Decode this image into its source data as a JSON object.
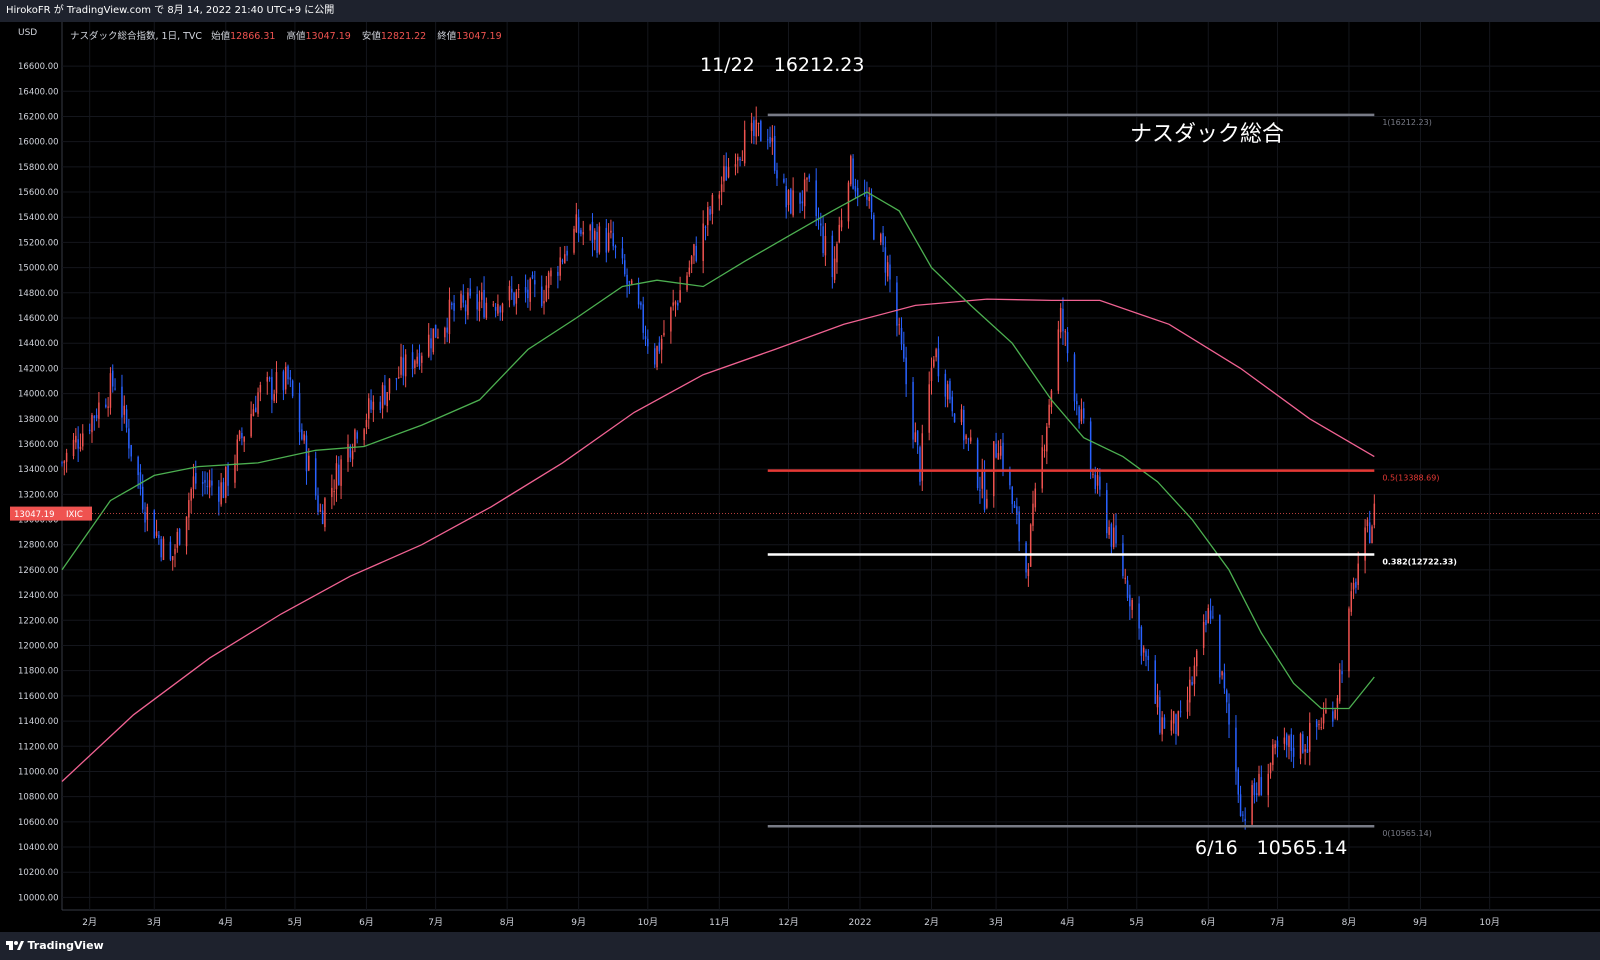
{
  "header": {
    "publish_text": "HirokoFR が TradingView.com で 8月 14, 2022 21:40 UTC+9 に公開"
  },
  "legend": {
    "symbol_text": "ナスダック総合指数, 1日, TVC",
    "open_label": "始値",
    "open_value": "12866.31",
    "high_label": "高値",
    "high_value": "13047.19",
    "low_label": "安値",
    "low_value": "12821.22",
    "close_label": "終値",
    "close_value": "13047.19"
  },
  "footer": {
    "brand": "TradingView"
  },
  "colors": {
    "up": "#ef5350",
    "down": "#2962ff",
    "ma_short": "#4caf50",
    "ma_long": "#f06292",
    "fib_mid": "#e53935",
    "fib_382": "#ffffff",
    "fib_ends": "#787b86"
  },
  "chart_data": {
    "type": "candlestick",
    "currency_label": "USD",
    "ylim": [
      9900,
      16950
    ],
    "y_ticks": [
      "16600.00",
      "16400.00",
      "16200.00",
      "16000.00",
      "15800.00",
      "15600.00",
      "15400.00",
      "15200.00",
      "15000.00",
      "14800.00",
      "14600.00",
      "14400.00",
      "14200.00",
      "14000.00",
      "13800.00",
      "13600.00",
      "13400.00",
      "13200.00",
      "13000.00",
      "12800.00",
      "12600.00",
      "12400.00",
      "12200.00",
      "12000.00",
      "11800.00",
      "11600.00",
      "11400.00",
      "11200.00",
      "11000.00",
      "10800.00",
      "10600.00",
      "10400.00",
      "10200.00",
      "10000.00"
    ],
    "x_ticks": [
      "2月",
      "3月",
      "4月",
      "5月",
      "6月",
      "7月",
      "8月",
      "9月",
      "10月",
      "11月",
      "12月",
      "2022",
      "2月",
      "3月",
      "4月",
      "5月",
      "6月",
      "7月",
      "8月",
      "9月",
      "10月"
    ],
    "x_range": [
      "2021-01-20",
      "2022-10-25"
    ],
    "last_price": {
      "value": "13047.19",
      "symbol": "IXIC"
    },
    "annotations": {
      "high_note": "11/22　16212.23",
      "low_note": "6/16　10565.14",
      "name_note": "ナスダック総合"
    },
    "fib_levels": [
      {
        "ratio": 1,
        "value": 16212.23,
        "label": "1(16212.23)"
      },
      {
        "ratio": 0.5,
        "value": 13388.69,
        "label": "0.5(13388.69)"
      },
      {
        "ratio": 0.382,
        "value": 12722.33,
        "label": "0.382(12722.33)"
      },
      {
        "ratio": 0,
        "value": 10565.14,
        "label": "0(10565.14)"
      }
    ],
    "fib_range": [
      "2021-11-22",
      "2022-08-12"
    ],
    "price_path": [
      [
        "2021-01-20",
        13450
      ],
      [
        "2021-02-12",
        14100
      ],
      [
        "2021-02-25",
        13100
      ],
      [
        "2021-03-08",
        12650
      ],
      [
        "2021-03-18",
        13300
      ],
      [
        "2021-03-31",
        13250
      ],
      [
        "2021-04-15",
        14000
      ],
      [
        "2021-04-28",
        14100
      ],
      [
        "2021-05-12",
        13050
      ],
      [
        "2021-05-28",
        13750
      ],
      [
        "2021-06-15",
        14150
      ],
      [
        "2021-07-08",
        14650
      ],
      [
        "2021-07-27",
        14750
      ],
      [
        "2021-08-16",
        14800
      ],
      [
        "2021-08-31",
        15300
      ],
      [
        "2021-09-15",
        15200
      ],
      [
        "2021-10-04",
        14300
      ],
      [
        "2021-10-21",
        15100
      ],
      [
        "2021-11-08",
        15950
      ],
      [
        "2021-11-22",
        16100
      ],
      [
        "2021-11-30",
        15500
      ],
      [
        "2021-12-10",
        15600
      ],
      [
        "2021-12-20",
        14950
      ],
      [
        "2021-12-27",
        15800
      ],
      [
        "2022-01-04",
        15500
      ],
      [
        "2022-01-13",
        15000
      ],
      [
        "2022-01-27",
        13400
      ],
      [
        "2022-02-02",
        14350
      ],
      [
        "2022-02-14",
        13750
      ],
      [
        "2022-02-24",
        13200
      ],
      [
        "2022-03-02",
        13650
      ],
      [
        "2022-03-14",
        12600
      ],
      [
        "2022-03-29",
        14600
      ],
      [
        "2022-04-11",
        13400
      ],
      [
        "2022-04-29",
        12350
      ],
      [
        "2022-05-11",
        11400
      ],
      [
        "2022-05-20",
        11350
      ],
      [
        "2022-06-02",
        12300
      ],
      [
        "2022-06-16",
        10650
      ],
      [
        "2022-07-01",
        11150
      ],
      [
        "2022-07-14",
        11250
      ],
      [
        "2022-07-26",
        11550
      ],
      [
        "2022-08-05",
        12650
      ],
      [
        "2022-08-12",
        13047
      ]
    ],
    "ma_short_path": [
      [
        "2021-01-20",
        12600
      ],
      [
        "2021-02-10",
        13150
      ],
      [
        "2021-03-01",
        13350
      ],
      [
        "2021-03-20",
        13420
      ],
      [
        "2021-04-15",
        13450
      ],
      [
        "2021-05-10",
        13550
      ],
      [
        "2021-05-31",
        13580
      ],
      [
        "2021-06-25",
        13750
      ],
      [
        "2021-07-20",
        13950
      ],
      [
        "2021-08-10",
        14350
      ],
      [
        "2021-08-31",
        14600
      ],
      [
        "2021-09-20",
        14850
      ],
      [
        "2021-10-05",
        14900
      ],
      [
        "2021-10-25",
        14850
      ],
      [
        "2021-11-12",
        15050
      ],
      [
        "2021-12-01",
        15250
      ],
      [
        "2021-12-20",
        15450
      ],
      [
        "2022-01-04",
        15600
      ],
      [
        "2022-01-18",
        15450
      ],
      [
        "2022-02-01",
        15000
      ],
      [
        "2022-02-18",
        14700
      ],
      [
        "2022-03-08",
        14400
      ],
      [
        "2022-03-25",
        13950
      ],
      [
        "2022-04-08",
        13650
      ],
      [
        "2022-04-25",
        13500
      ],
      [
        "2022-05-10",
        13300
      ],
      [
        "2022-05-25",
        13000
      ],
      [
        "2022-06-10",
        12600
      ],
      [
        "2022-06-24",
        12100
      ],
      [
        "2022-07-08",
        11700
      ],
      [
        "2022-07-20",
        11500
      ],
      [
        "2022-08-01",
        11500
      ],
      [
        "2022-08-12",
        11750
      ]
    ],
    "ma_long_path": [
      [
        "2021-01-20",
        10920
      ],
      [
        "2021-02-20",
        11450
      ],
      [
        "2021-03-25",
        11900
      ],
      [
        "2021-04-25",
        12250
      ],
      [
        "2021-05-25",
        12550
      ],
      [
        "2021-06-25",
        12800
      ],
      [
        "2021-07-25",
        13100
      ],
      [
        "2021-08-25",
        13450
      ],
      [
        "2021-09-25",
        13850
      ],
      [
        "2021-10-25",
        14150
      ],
      [
        "2021-11-25",
        14350
      ],
      [
        "2021-12-25",
        14550
      ],
      [
        "2022-01-25",
        14700
      ],
      [
        "2022-02-25",
        14750
      ],
      [
        "2022-03-25",
        14740
      ],
      [
        "2022-04-15",
        14740
      ],
      [
        "2022-05-15",
        14550
      ],
      [
        "2022-06-15",
        14200
      ],
      [
        "2022-07-15",
        13800
      ],
      [
        "2022-08-12",
        13500
      ]
    ]
  }
}
